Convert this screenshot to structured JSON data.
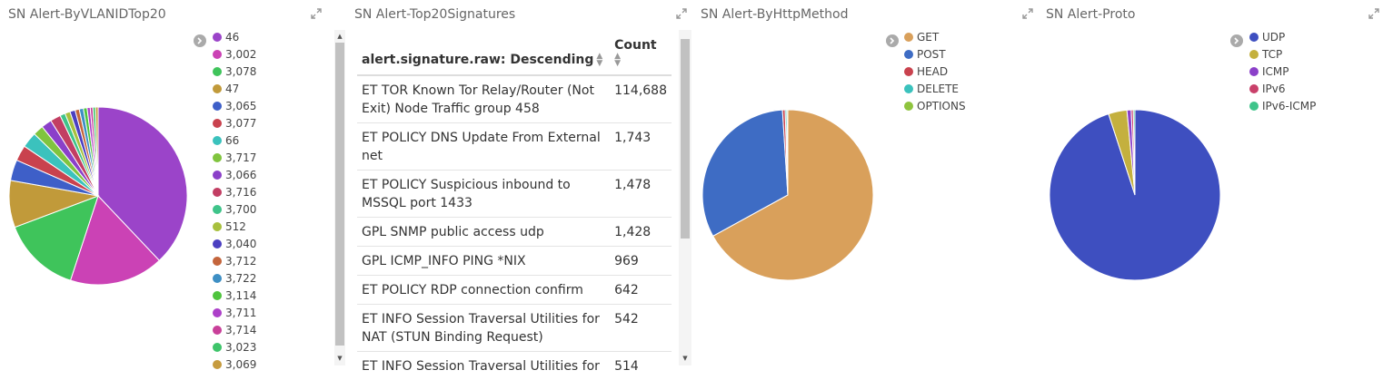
{
  "panels": [
    {
      "title": "SN Alert-ByVLANIDTop20"
    },
    {
      "title": "SN Alert-Top20Signatures"
    },
    {
      "title": "SN Alert-ByHttpMethod"
    },
    {
      "title": "SN Alert-Proto"
    }
  ],
  "vlan": {
    "legend": [
      {
        "label": "46",
        "color": "#9b44c9"
      },
      {
        "label": "3,002",
        "color": "#cb42b5"
      },
      {
        "label": "3,078",
        "color": "#3fc45b"
      },
      {
        "label": "47",
        "color": "#c19a3a"
      },
      {
        "label": "3,065",
        "color": "#3e5fc8"
      },
      {
        "label": "3,077",
        "color": "#c9424e"
      },
      {
        "label": "66",
        "color": "#3bc2bd"
      },
      {
        "label": "3,717",
        "color": "#80c43e"
      },
      {
        "label": "3,066",
        "color": "#8b40c9"
      },
      {
        "label": "3,716",
        "color": "#c23e63"
      },
      {
        "label": "3,700",
        "color": "#3fc48a"
      },
      {
        "label": "512",
        "color": "#a8c03e"
      },
      {
        "label": "3,040",
        "color": "#4b3fc1"
      },
      {
        "label": "3,712",
        "color": "#c4653c"
      },
      {
        "label": "3,722",
        "color": "#3e8fc4"
      },
      {
        "label": "3,114",
        "color": "#4fc43e"
      },
      {
        "label": "3,711",
        "color": "#ad40c9"
      },
      {
        "label": "3,714",
        "color": "#c9409a"
      },
      {
        "label": "3,023",
        "color": "#3ec46a"
      },
      {
        "label": "3,069",
        "color": "#c69b3e"
      }
    ]
  },
  "signatures": {
    "columns": {
      "signature": "alert.signature.raw: Descending",
      "count": "Count"
    },
    "rows": [
      {
        "signature": "ET TOR Known Tor Relay/Router (Not Exit) Node Traffic group 458",
        "count": "114,688"
      },
      {
        "signature": "ET POLICY DNS Update From External net",
        "count": "1,743"
      },
      {
        "signature": "ET POLICY Suspicious inbound to MSSQL port 1433",
        "count": "1,478"
      },
      {
        "signature": "GPL SNMP public access udp",
        "count": "1,428"
      },
      {
        "signature": "GPL ICMP_INFO PING *NIX",
        "count": "969"
      },
      {
        "signature": "ET POLICY RDP connection confirm",
        "count": "642"
      },
      {
        "signature": "ET INFO Session Traversal Utilities for NAT (STUN Binding Request)",
        "count": "542"
      },
      {
        "signature": "ET INFO Session Traversal Utilities for",
        "count": "514"
      }
    ]
  },
  "http": {
    "legend": [
      {
        "label": "GET",
        "color": "#d9a05b"
      },
      {
        "label": "POST",
        "color": "#3e6cc4"
      },
      {
        "label": "HEAD",
        "color": "#c9424e"
      },
      {
        "label": "DELETE",
        "color": "#3bc2bd"
      },
      {
        "label": "OPTIONS",
        "color": "#8fc43e"
      }
    ]
  },
  "proto": {
    "legend": [
      {
        "label": "UDP",
        "color": "#3e4fc0"
      },
      {
        "label": "TCP",
        "color": "#c4b03e"
      },
      {
        "label": "ICMP",
        "color": "#8b40c9"
      },
      {
        "label": "IPv6",
        "color": "#c9406a"
      },
      {
        "label": "IPv6-ICMP",
        "color": "#3fc48a"
      }
    ]
  }
}
